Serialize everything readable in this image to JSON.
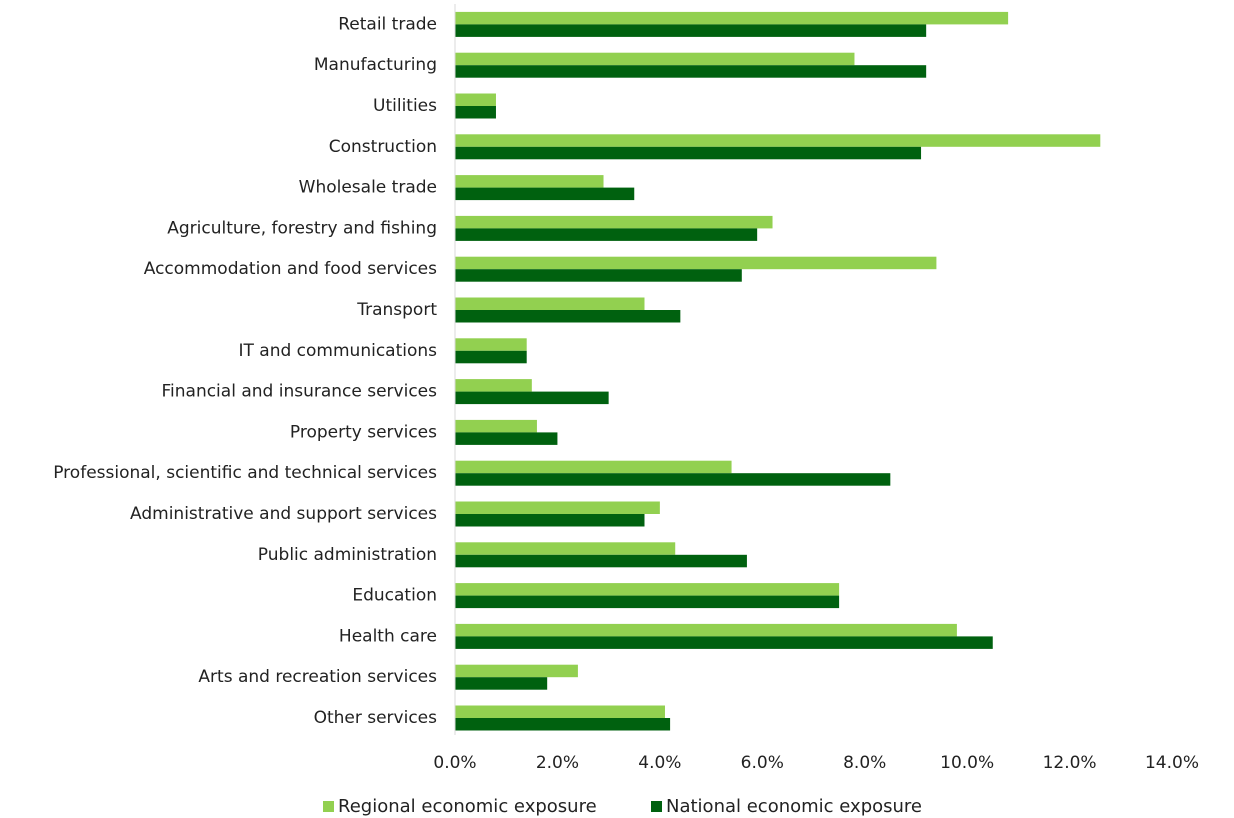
{
  "chart_data": {
    "type": "bar",
    "orientation": "horizontal",
    "categories": [
      "Retail trade",
      "Manufacturing",
      "Utilities",
      "Construction",
      "Wholesale trade",
      "Agriculture, forestry and fishing",
      "Accommodation and food services",
      "Transport",
      "IT and communications",
      "Financial and insurance services",
      "Property services",
      "Professional, scientific and technical services",
      "Administrative and support services",
      "Public administration",
      "Education",
      "Health care",
      "Arts and recreation services",
      "Other services"
    ],
    "series": [
      {
        "name": "Regional economic exposure",
        "color": "#92d050",
        "values": [
          10.8,
          7.8,
          0.8,
          12.6,
          2.9,
          6.2,
          9.4,
          3.7,
          1.4,
          1.5,
          1.6,
          5.4,
          4.0,
          4.3,
          7.5,
          9.8,
          2.4,
          4.1
        ]
      },
      {
        "name": "National economic exposure",
        "color": "#00610f",
        "values": [
          9.2,
          9.2,
          0.8,
          9.1,
          3.5,
          5.9,
          5.6,
          4.4,
          1.4,
          3.0,
          2.0,
          8.5,
          3.7,
          5.7,
          7.5,
          10.5,
          1.8,
          4.2
        ]
      }
    ],
    "x_ticks": [
      "0.0%",
      "2.0%",
      "4.0%",
      "6.0%",
      "8.0%",
      "10.0%",
      "12.0%",
      "14.0%"
    ],
    "xlim": [
      0,
      14
    ],
    "grid": false,
    "legend_position": "bottom",
    "title": "",
    "xlabel": "",
    "ylabel": ""
  }
}
